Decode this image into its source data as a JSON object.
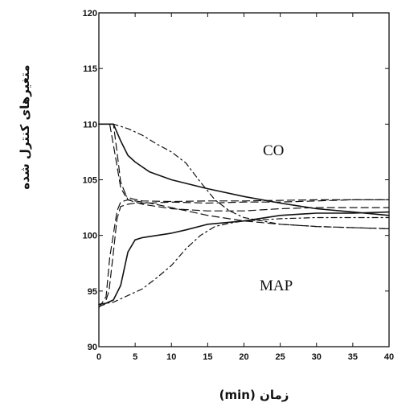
{
  "chart_data": {
    "type": "line",
    "title": "",
    "xlabel": "زمان (min)",
    "ylabel": "متغیرهای کنترل شده",
    "xlim": [
      0,
      40
    ],
    "ylim": [
      90,
      120
    ],
    "xticks": [
      0,
      5,
      10,
      15,
      20,
      25,
      30,
      35,
      40
    ],
    "yticks": [
      90,
      95,
      100,
      105,
      110,
      115,
      120
    ],
    "grid": false,
    "legend": "none",
    "annotations": [
      {
        "text": "CO",
        "x": 27,
        "y": 107.3
      },
      {
        "text": "MAP",
        "x": 29,
        "y": 96.3
      }
    ],
    "series": [
      {
        "group": "CO",
        "style": "solid",
        "x": [
          0,
          2,
          3,
          4,
          5,
          7,
          10,
          15,
          20,
          25,
          30,
          35,
          40
        ],
        "y": [
          110,
          110,
          108.5,
          107.2,
          106.6,
          105.7,
          105,
          104.2,
          103.5,
          102.9,
          102.4,
          102.1,
          101.8
        ]
      },
      {
        "group": "CO",
        "style": "dashed",
        "x": [
          0,
          1.5,
          2.3,
          3,
          3.6,
          4.5,
          6,
          10,
          15,
          20,
          25,
          30,
          35,
          40
        ],
        "y": [
          110,
          110,
          107,
          104.3,
          103.6,
          103.3,
          103.1,
          103.05,
          103.1,
          103.1,
          103.15,
          103.2,
          103.2,
          103.2
        ]
      },
      {
        "group": "CO",
        "style": "dashdot",
        "x": [
          0,
          2,
          4,
          6,
          8,
          10,
          12,
          14,
          16,
          18,
          20,
          25,
          30,
          35,
          40
        ],
        "y": [
          110,
          110,
          109.6,
          109,
          108.2,
          107.5,
          106.5,
          104.8,
          103.2,
          102.2,
          101.6,
          101,
          100.8,
          100.7,
          100.6
        ]
      },
      {
        "group": "CO",
        "style": "dashed",
        "x": [
          0,
          2,
          2.5,
          3,
          4,
          6,
          10,
          15,
          20,
          25,
          30,
          35,
          40
        ],
        "y": [
          110,
          110,
          107.5,
          104.8,
          103.2,
          102.8,
          102.4,
          102.2,
          102.2,
          102.4,
          102.5,
          102.5,
          102.5
        ]
      },
      {
        "group": "MAP",
        "style": "solid",
        "x": [
          0,
          1,
          2,
          3,
          4,
          5,
          6,
          8,
          10,
          12,
          15,
          20,
          25,
          30,
          35,
          40
        ],
        "y": [
          93.8,
          93.9,
          94.2,
          95.5,
          98.5,
          99.6,
          99.8,
          100,
          100.2,
          100.5,
          101,
          101.3,
          101.8,
          102,
          102,
          102.1
        ]
      },
      {
        "group": "MAP",
        "style": "dashed",
        "x": [
          0,
          0.8,
          1.4,
          2,
          2.5,
          3,
          4,
          5,
          7,
          10,
          15,
          20,
          25,
          30,
          35,
          40
        ],
        "y": [
          93.6,
          93.8,
          95,
          98.5,
          101.5,
          102.6,
          102.8,
          102.9,
          102.9,
          103,
          102.9,
          103,
          103,
          103.1,
          103.2,
          103.2
        ]
      },
      {
        "group": "MAP",
        "style": "dashdot",
        "x": [
          0,
          2,
          4,
          6,
          8,
          10,
          12,
          14,
          16,
          18,
          20,
          25,
          30,
          35,
          40
        ],
        "y": [
          93.8,
          94,
          94.6,
          95.2,
          96.2,
          97.3,
          98.8,
          100,
          100.8,
          101.1,
          101.3,
          101.5,
          101.6,
          101.6,
          101.6
        ]
      },
      {
        "group": "MAP",
        "style": "dashed",
        "x": [
          0,
          1,
          1.5,
          2.5,
          3,
          4,
          5,
          7,
          10,
          15,
          20,
          25,
          30,
          35,
          40
        ],
        "y": [
          93.5,
          94.5,
          98,
          102.2,
          103,
          103.2,
          103.1,
          102.9,
          102.5,
          101.8,
          101.3,
          101,
          100.8,
          100.7,
          100.6
        ]
      }
    ]
  }
}
